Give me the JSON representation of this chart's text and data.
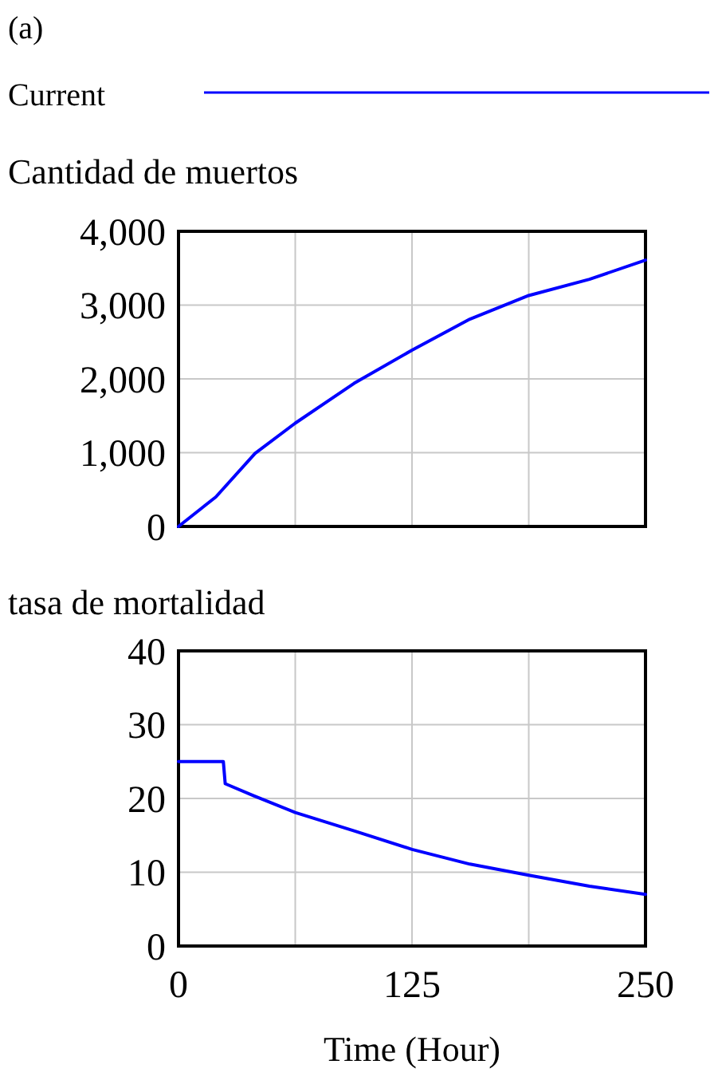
{
  "chart_data": [
    {
      "type": "line",
      "title": "(a)",
      "ylabel": "Cantidad de muertos",
      "legend": "top",
      "grid": true,
      "tick_labels": "y",
      "xlim": [
        0,
        250
      ],
      "xticks": [
        0,
        62.5,
        125,
        187.5,
        250
      ],
      "ylim": [
        0,
        4000
      ],
      "yticks": [
        {
          "value": 0,
          "label": "0"
        },
        {
          "value": 1000,
          "label": "1,000"
        },
        {
          "value": 2000,
          "label": "2,000"
        },
        {
          "value": 3000,
          "label": "3,000"
        },
        {
          "value": 4000,
          "label": "4,000"
        }
      ],
      "x": [
        0,
        20,
        41,
        62.5,
        94,
        125,
        156,
        187.5,
        220,
        250
      ],
      "series": [
        {
          "name": "Current",
          "color": "#0000ff",
          "values": [
            0,
            400,
            990,
            1400,
            1940,
            2390,
            2810,
            3130,
            3350,
            3610
          ]
        }
      ]
    },
    {
      "type": "line",
      "ylabel": "tasa de mortalidad",
      "xlabel": "Time (Hour)",
      "grid": true,
      "xlim": [
        0,
        250
      ],
      "xticks": [
        {
          "value": 0,
          "label": "0"
        },
        {
          "value": 62.5,
          "label": null
        },
        {
          "value": 125,
          "label": "125"
        },
        {
          "value": 187.5,
          "label": null
        },
        {
          "value": 250,
          "label": "250"
        }
      ],
      "ylim": [
        0,
        40
      ],
      "yticks": [
        0,
        10,
        20,
        30,
        40
      ],
      "x": [
        0,
        24,
        25,
        40,
        62.5,
        94,
        125,
        156,
        187.5,
        220,
        250
      ],
      "series": [
        {
          "color": "#0000ff",
          "values": [
            25,
            25,
            22,
            20.4,
            18.1,
            15.6,
            13.1,
            11.1,
            9.6,
            8.1,
            7.0
          ]
        }
      ]
    }
  ]
}
